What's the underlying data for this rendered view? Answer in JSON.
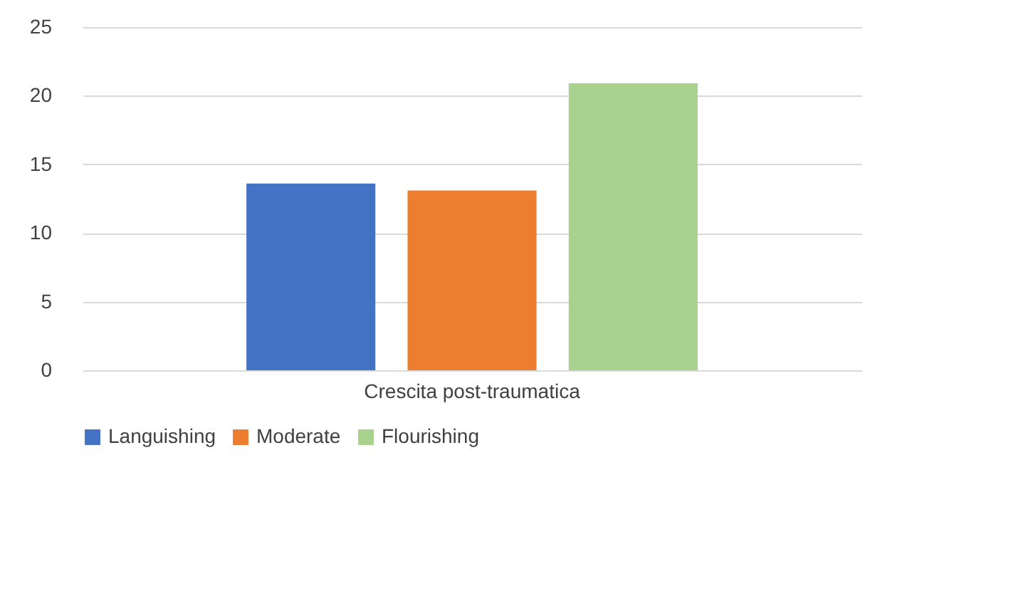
{
  "chart_data": {
    "type": "bar",
    "categories": [
      "Crescita post-traumatica"
    ],
    "series": [
      {
        "name": "Languishing",
        "color": "#4472c4",
        "values": [
          13.6
        ]
      },
      {
        "name": "Moderate",
        "color": "#ed7d31",
        "values": [
          13.1
        ]
      },
      {
        "name": "Flourishing",
        "color": "#a9d18e",
        "values": [
          20.9
        ]
      }
    ],
    "ylim": [
      0,
      25
    ],
    "yticks": [
      0,
      5,
      10,
      15,
      20,
      25
    ],
    "grid": "y",
    "legend": "bottom"
  }
}
